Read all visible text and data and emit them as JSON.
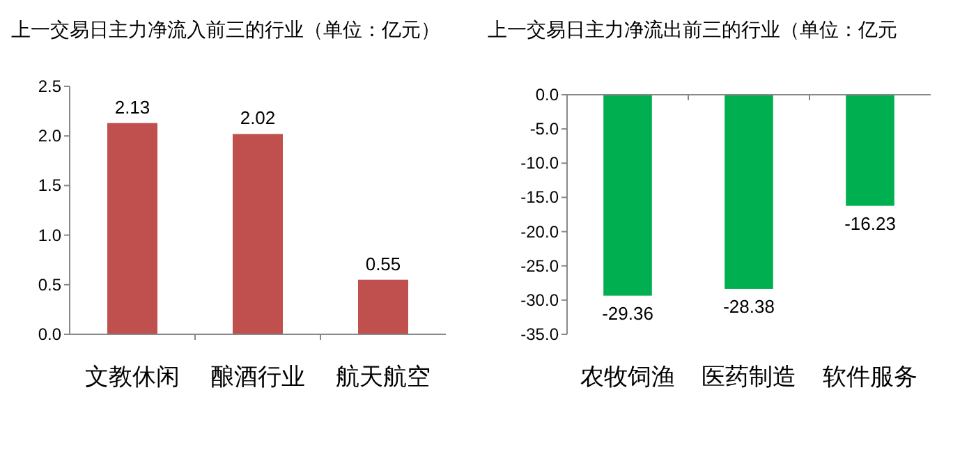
{
  "chart_data": [
    {
      "type": "bar",
      "title": "上一交易日主力净流入前三的行业（单位：亿元）",
      "categories": [
        "文教休闲",
        "酿酒行业",
        "航天航空"
      ],
      "values": [
        2.13,
        2.02,
        0.55
      ],
      "color": "#c0504d",
      "ylim": [
        0,
        2.5
      ],
      "yticks": [
        {
          "value": 0,
          "label": "0.0"
        },
        {
          "value": 0.5,
          "label": "0.5"
        },
        {
          "value": 1,
          "label": "1.0"
        },
        {
          "value": 1.5,
          "label": "1.5"
        },
        {
          "value": 2,
          "label": "2.0"
        },
        {
          "value": 2.5,
          "label": "2.5"
        }
      ],
      "data_labels": true
    },
    {
      "type": "bar",
      "title": "上一交易日主力净流出前三的行业（单位：亿元",
      "categories": [
        "农牧饲渔",
        "医药制造",
        "软件服务"
      ],
      "values": [
        -29.36,
        -28.38,
        -16.23
      ],
      "color": "#00b050",
      "ylim": [
        -35,
        0
      ],
      "yticks": [
        {
          "value": -35,
          "label": "-35.0"
        },
        {
          "value": -30,
          "label": "-30.0"
        },
        {
          "value": -25,
          "label": "-25.0"
        },
        {
          "value": -20,
          "label": "-20.0"
        },
        {
          "value": -15,
          "label": "-15.0"
        },
        {
          "value": -10,
          "label": "-10.0"
        },
        {
          "value": -5,
          "label": "-5.0"
        },
        {
          "value": 0,
          "label": "0.0"
        }
      ],
      "data_labels": true
    }
  ]
}
